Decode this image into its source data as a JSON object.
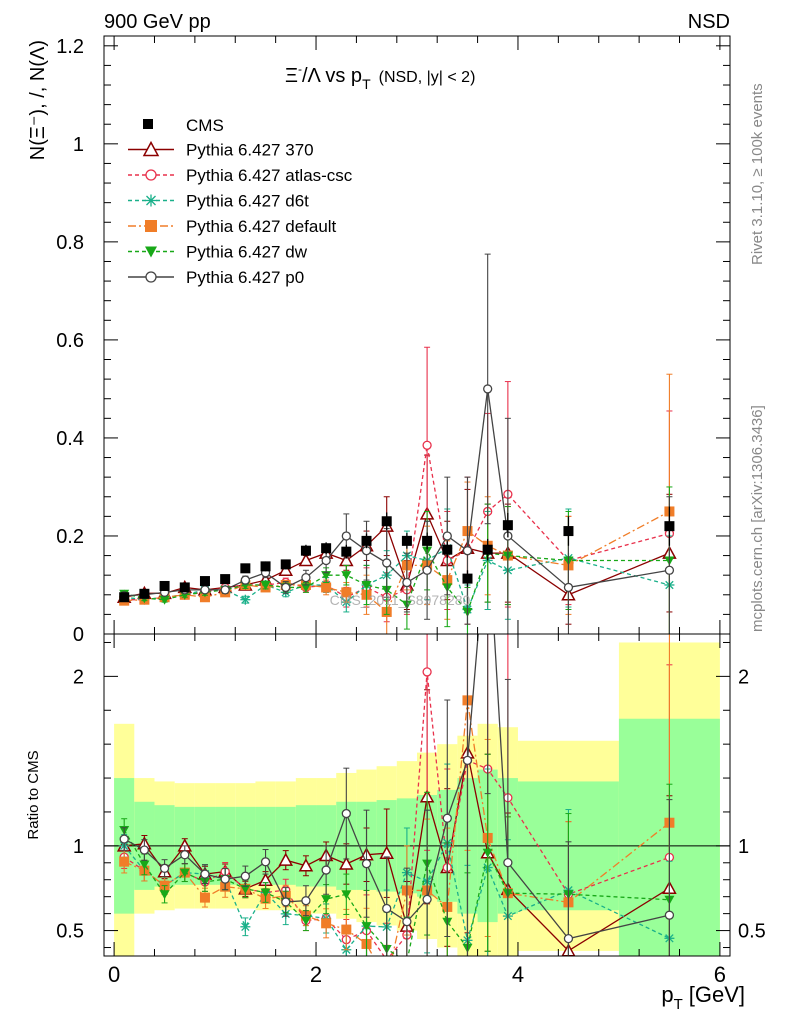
{
  "header": {
    "left": "900 GeV pp",
    "right": "NSD"
  },
  "side_labels": {
    "rivet": "Rivet 3.1.10, ≥ 100k events",
    "mcplots": "mcplots.cern.ch [arXiv:1306.3436]"
  },
  "watermark": "CMS_2011_S8978280",
  "chart_data": {
    "type": "scatter",
    "title": "Ξ⁻/Λ vs pT (NSD, |y| < 2)",
    "title_parts": {
      "a": "Ξ",
      "a_sup": "-",
      "b": "/Λ  vs p",
      "b_sub": "T",
      "c": "(NSD, |y| < 2)"
    },
    "xlabel": "p_T [GeV]",
    "xlabel_parts": {
      "p": "p",
      "sub": "T",
      "rest": "[GeV]"
    },
    "ylabel": "N(Ξ⁻), /, N(Λ)",
    "ratio_ylabel": "Ratio to CMS",
    "xlim": [
      -0.1,
      6.1
    ],
    "ylim": [
      0,
      1.22
    ],
    "ratio_ylim": [
      0.35,
      2.25
    ],
    "x_ticks": [
      "0",
      "2",
      "4",
      "6"
    ],
    "y_ticks": [
      "0",
      "0.2",
      "0.4",
      "0.6",
      "0.8",
      "1",
      "1.2"
    ],
    "ratio_ticks": [
      "0.5",
      "1",
      "2"
    ],
    "x": [
      0.1,
      0.3,
      0.5,
      0.7,
      0.9,
      1.1,
      1.3,
      1.5,
      1.7,
      1.9,
      2.1,
      2.3,
      2.5,
      2.7,
      2.9,
      3.1,
      3.3,
      3.5,
      3.7,
      3.9,
      4.5,
      5.5
    ],
    "data": {
      "name": "CMS",
      "values": [
        0.075,
        0.082,
        0.098,
        0.095,
        0.108,
        0.112,
        0.134,
        0.138,
        0.142,
        0.17,
        0.175,
        0.168,
        0.19,
        0.23,
        0.19,
        0.19,
        0.172,
        0.113,
        0.172,
        0.222,
        0.21,
        0.22
      ],
      "errors": [
        0.006,
        0.006,
        0.007,
        0.007,
        0.008,
        0.008,
        0.009,
        0.01,
        0.01,
        0.012,
        0.012,
        0.014,
        0.015,
        0.018,
        0.016,
        0.017,
        0.017,
        0.017,
        0.022,
        0.025,
        0.03,
        0.04
      ]
    },
    "band_edges": [
      0.0,
      0.2,
      0.4,
      0.6,
      0.8,
      1.0,
      1.2,
      1.4,
      1.6,
      1.8,
      2.0,
      2.2,
      2.4,
      2.6,
      2.8,
      3.0,
      3.2,
      3.4,
      3.6,
      3.8,
      4.0,
      5.0,
      6.0
    ],
    "band_inner": [
      0.4,
      0.26,
      0.24,
      0.23,
      0.23,
      0.23,
      0.23,
      0.23,
      0.23,
      0.24,
      0.24,
      0.26,
      0.26,
      0.27,
      0.28,
      0.3,
      0.33,
      0.4,
      0.45,
      0.4,
      0.38,
      0.75
    ],
    "band_outer": [
      0.72,
      0.4,
      0.38,
      0.37,
      0.37,
      0.37,
      0.37,
      0.38,
      0.38,
      0.4,
      0.4,
      0.43,
      0.45,
      0.47,
      0.5,
      0.55,
      0.6,
      0.65,
      0.72,
      0.7,
      0.62,
      1.2
    ],
    "series": [
      {
        "name": "Pythia 6.427 370",
        "color": "#8b0000",
        "dash": "",
        "marker": "triangle-open",
        "values": [
          0.075,
          0.083,
          0.083,
          0.095,
          0.09,
          0.095,
          0.1,
          0.11,
          0.13,
          0.15,
          0.165,
          0.15,
          0.18,
          0.22,
          0.1,
          0.245,
          0.15,
          0.175,
          0.165,
          0.165,
          0.08,
          0.165
        ],
        "errors": [
          0.004,
          0.004,
          0.004,
          0.004,
          0.005,
          0.005,
          0.006,
          0.007,
          0.008,
          0.01,
          0.014,
          0.02,
          0.03,
          0.06,
          0.05,
          0.12,
          0.08,
          0.12,
          0.1,
          0.1,
          0.06,
          0.12
        ]
      },
      {
        "name": "Pythia 6.427 atlas-csc",
        "color": "#e8304b",
        "dash": "4,3",
        "marker": "circle-open",
        "values": [
          0.07,
          0.07,
          0.075,
          0.08,
          0.085,
          0.095,
          0.1,
          0.1,
          0.105,
          0.095,
          0.1,
          0.075,
          0.095,
          0.075,
          0.09,
          0.385,
          0.15,
          0.17,
          0.25,
          0.285,
          0.15,
          0.205
        ],
        "errors": [
          0.005,
          0.005,
          0.005,
          0.005,
          0.006,
          0.006,
          0.007,
          0.008,
          0.009,
          0.01,
          0.015,
          0.02,
          0.04,
          0.05,
          0.05,
          0.2,
          0.1,
          0.15,
          0.2,
          0.23,
          0.09,
          0.25
        ]
      },
      {
        "name": "Pythia 6.427 d6t",
        "color": "#1ab08a",
        "dash": "4,3",
        "marker": "star",
        "values": [
          0.075,
          0.07,
          0.075,
          0.08,
          0.09,
          0.09,
          0.07,
          0.1,
          0.085,
          0.1,
          0.1,
          0.065,
          0.1,
          0.12,
          0.16,
          0.15,
          0.175,
          0.05,
          0.15,
          0.13,
          0.155,
          0.1
        ],
        "errors": [
          0.005,
          0.005,
          0.005,
          0.005,
          0.006,
          0.007,
          0.007,
          0.008,
          0.009,
          0.01,
          0.015,
          0.02,
          0.04,
          0.05,
          0.05,
          0.08,
          0.08,
          0.05,
          0.1,
          0.1,
          0.1,
          0.1
        ]
      },
      {
        "name": "Pythia 6.427 default",
        "color": "#f07d28",
        "dash": "8,3,2,3",
        "marker": "square",
        "values": [
          0.068,
          0.07,
          0.075,
          0.08,
          0.075,
          0.085,
          0.1,
          0.095,
          0.1,
          0.1,
          0.095,
          0.085,
          0.08,
          0.045,
          0.14,
          0.14,
          0.11,
          0.21,
          0.18,
          0.16,
          0.14,
          0.25
        ],
        "errors": [
          0.005,
          0.005,
          0.005,
          0.005,
          0.006,
          0.007,
          0.007,
          0.008,
          0.009,
          0.01,
          0.015,
          0.02,
          0.04,
          0.05,
          0.05,
          0.08,
          0.08,
          0.1,
          0.1,
          0.1,
          0.1,
          0.28
        ]
      },
      {
        "name": "Pythia 6.427 dw",
        "color": "#18a818",
        "dash": "4,3",
        "marker": "triangle-down",
        "values": [
          0.082,
          0.073,
          0.07,
          0.08,
          0.085,
          0.09,
          0.1,
          0.1,
          0.095,
          0.095,
          0.12,
          0.12,
          0.1,
          0.09,
          0.06,
          0.17,
          0.095,
          0.045,
          0.165,
          0.16,
          0.15,
          0.15
        ],
        "errors": [
          0.005,
          0.005,
          0.005,
          0.005,
          0.006,
          0.007,
          0.007,
          0.008,
          0.009,
          0.01,
          0.015,
          0.02,
          0.04,
          0.05,
          0.05,
          0.08,
          0.08,
          0.05,
          0.1,
          0.1,
          0.1,
          0.15
        ]
      },
      {
        "name": "Pythia 6.427 p0",
        "color": "#444444",
        "dash": "",
        "marker": "circle-open",
        "values": [
          0.078,
          0.08,
          0.085,
          0.09,
          0.09,
          0.09,
          0.11,
          0.125,
          0.095,
          0.115,
          0.15,
          0.2,
          0.17,
          0.145,
          0.105,
          0.13,
          0.2,
          0.17,
          0.5,
          0.2,
          0.095,
          0.13
        ],
        "errors": [
          0.005,
          0.005,
          0.005,
          0.005,
          0.006,
          0.007,
          0.008,
          0.01,
          0.012,
          0.015,
          0.025,
          0.045,
          0.06,
          0.07,
          0.06,
          0.1,
          0.12,
          0.15,
          0.275,
          0.24,
          0.12,
          0.15
        ]
      }
    ]
  }
}
